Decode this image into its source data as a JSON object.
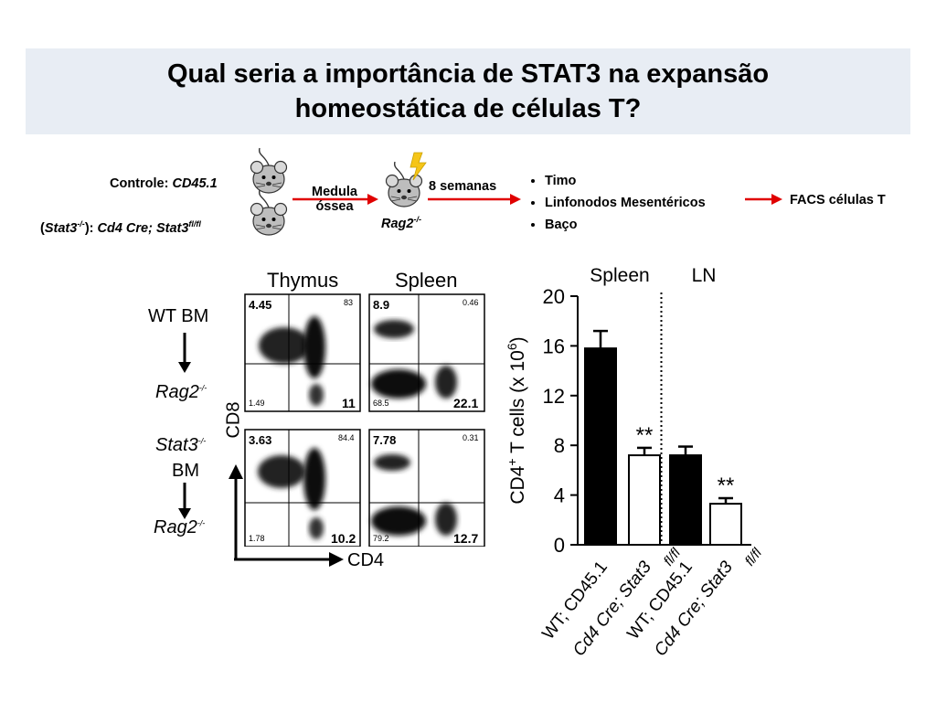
{
  "title": {
    "line1": "Qual seria a importância de STAT3 na expansão",
    "line2": "homeostática de células T?"
  },
  "scheme": {
    "control_prefix": "Controle: ",
    "control_strain": "CD45.1",
    "stat3_open": "(",
    "stat3_gene": "Stat3",
    "stat3_sup": "-/-",
    "stat3_close": "): ",
    "stat3_strain": "Cd4 Cre; Stat3",
    "stat3_strain_sup": "fl/fl",
    "medula_line1": "Medula",
    "medula_line2": "óssea",
    "recipient": "Rag2",
    "recipient_sup": "-/-",
    "weeks": "8 semanas",
    "organs": [
      "Timo",
      "Linfonodos Mesentéricos",
      "Baço"
    ],
    "facs": "FACS  células T"
  },
  "facs_figure": {
    "col_thymus": "Thymus",
    "col_spleen": "Spleen",
    "row1_donor": "WT BM",
    "row1_recipient": "Rag2",
    "row1_recipient_sup": "-/-",
    "row2_donor_gene": "Stat3",
    "row2_donor_sup": "-/-",
    "row2_donor_suffix": "BM",
    "row2_recipient": "Rag2",
    "row2_recipient_sup": "-/-",
    "y_axis": "CD8",
    "x_axis": "CD4",
    "panels": [
      {
        "ul": "4.45",
        "ur": "83",
        "ll": "1.49",
        "lr": "11"
      },
      {
        "ul": "8.9",
        "ur": "0.46",
        "ll": "68.5",
        "lr": "22.1"
      },
      {
        "ul": "3.63",
        "ur": "84.4",
        "ll": "1.78",
        "lr": "10.2"
      },
      {
        "ul": "7.78",
        "ur": "0.31",
        "ll": "79.2",
        "lr": "12.7"
      }
    ]
  },
  "chart_data": {
    "type": "bar",
    "groups": [
      "Spleen",
      "LN"
    ],
    "categories": [
      "WT; CD45.1",
      "Cd4 Cre; Stat3 fl/fl",
      "WT; CD45.1",
      "Cd4 Cre; Stat3 fl/fl"
    ],
    "category_lines": [
      [
        "WT; CD45.1",
        ""
      ],
      [
        "Cd4 Cre; Stat3",
        "fl/fl"
      ],
      [
        "WT; CD45.1",
        ""
      ],
      [
        "Cd4 Cre; Stat3",
        "fl/fl"
      ]
    ],
    "values": [
      15.8,
      7.2,
      7.2,
      3.3
    ],
    "errors": [
      1.4,
      0.6,
      0.7,
      0.45
    ],
    "fills": [
      "#000000",
      "#ffffff",
      "#000000",
      "#ffffff"
    ],
    "significance": [
      "",
      "**",
      "",
      "**"
    ],
    "ylabel": "CD4",
    "ylabel_sup": "+",
    "ylabel_rest": " T cells (x 10",
    "ylabel_exp": "6",
    "ylabel_end": ")",
    "ylim": [
      0,
      20
    ],
    "yticks": [
      "0",
      "4",
      "8",
      "12",
      "16",
      "20"
    ],
    "divider_after_index": 1
  }
}
